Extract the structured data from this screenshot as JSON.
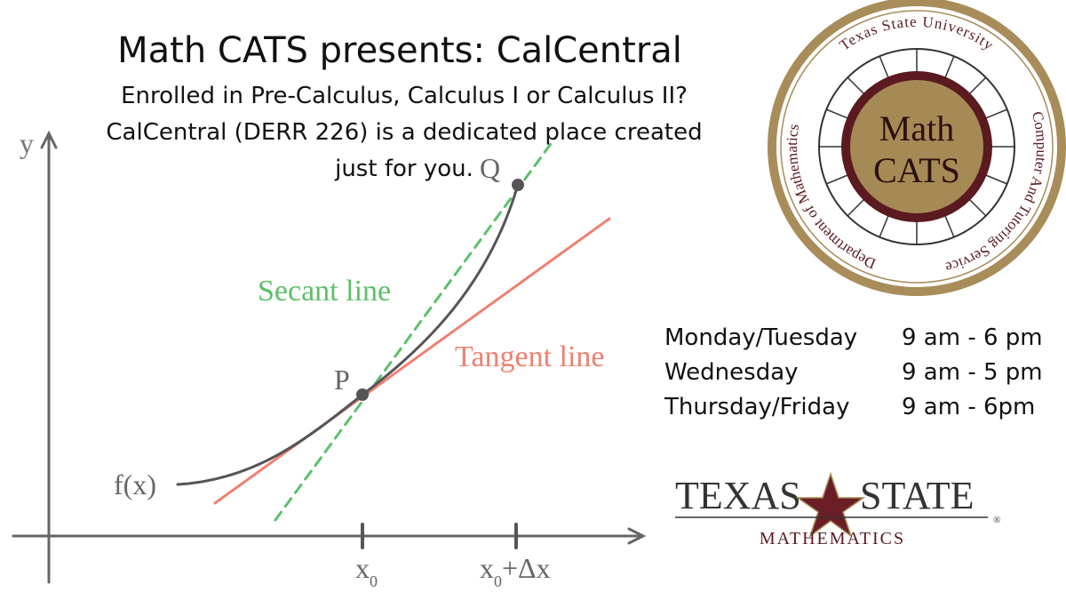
{
  "header": {
    "title": "Math CATS presents: CalCentral",
    "lines": [
      "Enrolled in Pre-Calculus, Calculus I or Calculus II?",
      "CalCentral (DERR 226) is a dedicated place created",
      "just for you."
    ]
  },
  "graph": {
    "y_axis": "y",
    "secant": "Secant line",
    "tangent": "Tangent line",
    "point_p": "P",
    "point_q": "Q",
    "function": "f(x)",
    "tick_1": {
      "base": "x",
      "sub": "0"
    },
    "tick_2": {
      "base": "x",
      "sub": "0",
      "rest": "+Δx"
    }
  },
  "logo": {
    "top": "Texas State University",
    "right": "Computer And Tutoring Service",
    "left": "Department of Mathematics",
    "center_1": "Math",
    "center_2": "CATS"
  },
  "hours": {
    "rows": [
      [
        "Monday/Tuesday",
        "9 am - 6 pm"
      ],
      [
        "Wednesday",
        "9 am - 5 pm"
      ],
      [
        "Thursday/Friday",
        "9 am - 6pm"
      ]
    ]
  },
  "footer_logo": {
    "word_1": "TEXAS",
    "word_2": "STATE",
    "registered": "®",
    "department": "MATHEMATICS"
  }
}
